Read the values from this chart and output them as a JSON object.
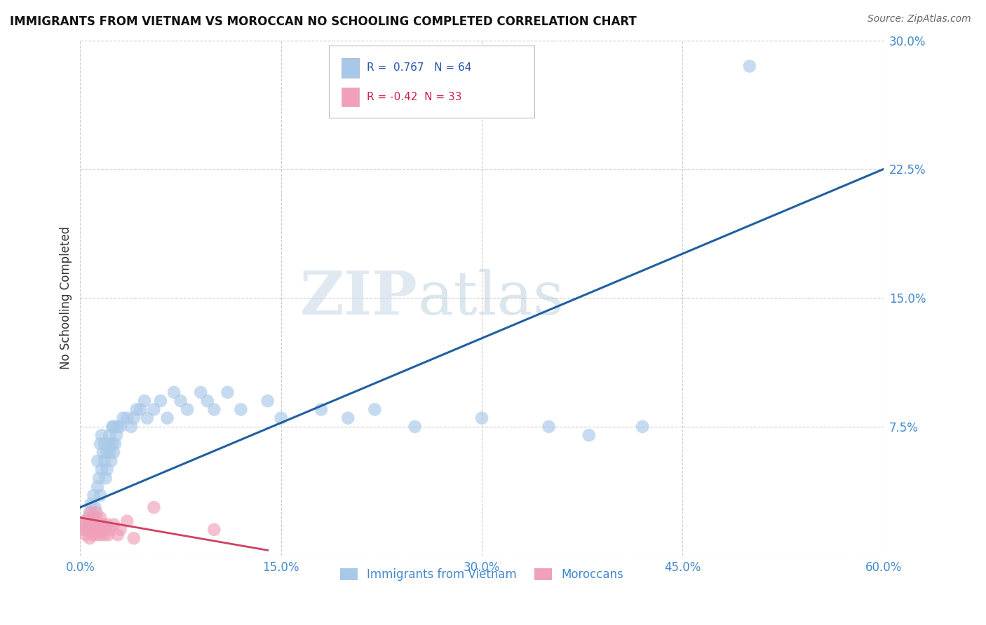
{
  "title": "IMMIGRANTS FROM VIETNAM VS MOROCCAN NO SCHOOLING COMPLETED CORRELATION CHART",
  "source": "Source: ZipAtlas.com",
  "ylabel": "No Schooling Completed",
  "legend_label_blue": "Immigrants from Vietnam",
  "legend_label_pink": "Moroccans",
  "r_blue": 0.767,
  "n_blue": 64,
  "r_pink": -0.42,
  "n_pink": 33,
  "xlim": [
    0.0,
    0.6
  ],
  "ylim": [
    0.0,
    0.3
  ],
  "xtick_labels": [
    "0.0%",
    "15.0%",
    "30.0%",
    "45.0%",
    "60.0%"
  ],
  "xtick_vals": [
    0.0,
    0.15,
    0.3,
    0.45,
    0.6
  ],
  "ytick_labels": [
    "7.5%",
    "15.0%",
    "22.5%",
    "30.0%"
  ],
  "ytick_vals": [
    0.075,
    0.15,
    0.225,
    0.3
  ],
  "color_blue": "#a8c8e8",
  "color_blue_line": "#2060a0",
  "color_pink": "#f0a0b8",
  "color_pink_line": "#d04060",
  "watermark_zip": "ZIP",
  "watermark_atlas": "atlas",
  "blue_line_x0": 0.0,
  "blue_line_y0": 0.028,
  "blue_line_x1": 0.6,
  "blue_line_y1": 0.225,
  "pink_line_x0": 0.0,
  "pink_line_y0": 0.022,
  "pink_line_x1": 0.14,
  "pink_line_y1": 0.003,
  "blue_x": [
    0.003,
    0.005,
    0.007,
    0.008,
    0.009,
    0.01,
    0.01,
    0.011,
    0.012,
    0.013,
    0.013,
    0.014,
    0.015,
    0.015,
    0.016,
    0.016,
    0.017,
    0.018,
    0.018,
    0.019,
    0.02,
    0.02,
    0.021,
    0.022,
    0.022,
    0.023,
    0.024,
    0.024,
    0.025,
    0.025,
    0.026,
    0.027,
    0.028,
    0.03,
    0.032,
    0.035,
    0.038,
    0.04,
    0.042,
    0.045,
    0.048,
    0.05,
    0.055,
    0.06,
    0.065,
    0.07,
    0.075,
    0.08,
    0.09,
    0.095,
    0.1,
    0.11,
    0.12,
    0.14,
    0.15,
    0.18,
    0.2,
    0.22,
    0.25,
    0.3,
    0.35,
    0.38,
    0.42,
    0.5
  ],
  "blue_y": [
    0.02,
    0.015,
    0.025,
    0.03,
    0.022,
    0.018,
    0.035,
    0.028,
    0.022,
    0.04,
    0.055,
    0.045,
    0.035,
    0.065,
    0.05,
    0.07,
    0.06,
    0.055,
    0.065,
    0.045,
    0.05,
    0.06,
    0.065,
    0.06,
    0.07,
    0.055,
    0.065,
    0.075,
    0.06,
    0.075,
    0.065,
    0.07,
    0.075,
    0.075,
    0.08,
    0.08,
    0.075,
    0.08,
    0.085,
    0.085,
    0.09,
    0.08,
    0.085,
    0.09,
    0.08,
    0.095,
    0.09,
    0.085,
    0.095,
    0.09,
    0.085,
    0.095,
    0.085,
    0.09,
    0.08,
    0.085,
    0.08,
    0.085,
    0.075,
    0.08,
    0.075,
    0.07,
    0.075,
    0.285
  ],
  "pink_x": [
    0.002,
    0.003,
    0.004,
    0.005,
    0.006,
    0.006,
    0.007,
    0.008,
    0.008,
    0.009,
    0.01,
    0.01,
    0.011,
    0.012,
    0.012,
    0.013,
    0.014,
    0.015,
    0.015,
    0.016,
    0.017,
    0.018,
    0.019,
    0.02,
    0.021,
    0.022,
    0.025,
    0.028,
    0.03,
    0.035,
    0.04,
    0.055,
    0.1
  ],
  "pink_y": [
    0.015,
    0.018,
    0.012,
    0.02,
    0.015,
    0.022,
    0.01,
    0.018,
    0.025,
    0.012,
    0.015,
    0.022,
    0.018,
    0.012,
    0.025,
    0.018,
    0.015,
    0.012,
    0.022,
    0.015,
    0.018,
    0.012,
    0.015,
    0.018,
    0.012,
    0.015,
    0.018,
    0.012,
    0.015,
    0.02,
    0.01,
    0.028,
    0.015
  ]
}
